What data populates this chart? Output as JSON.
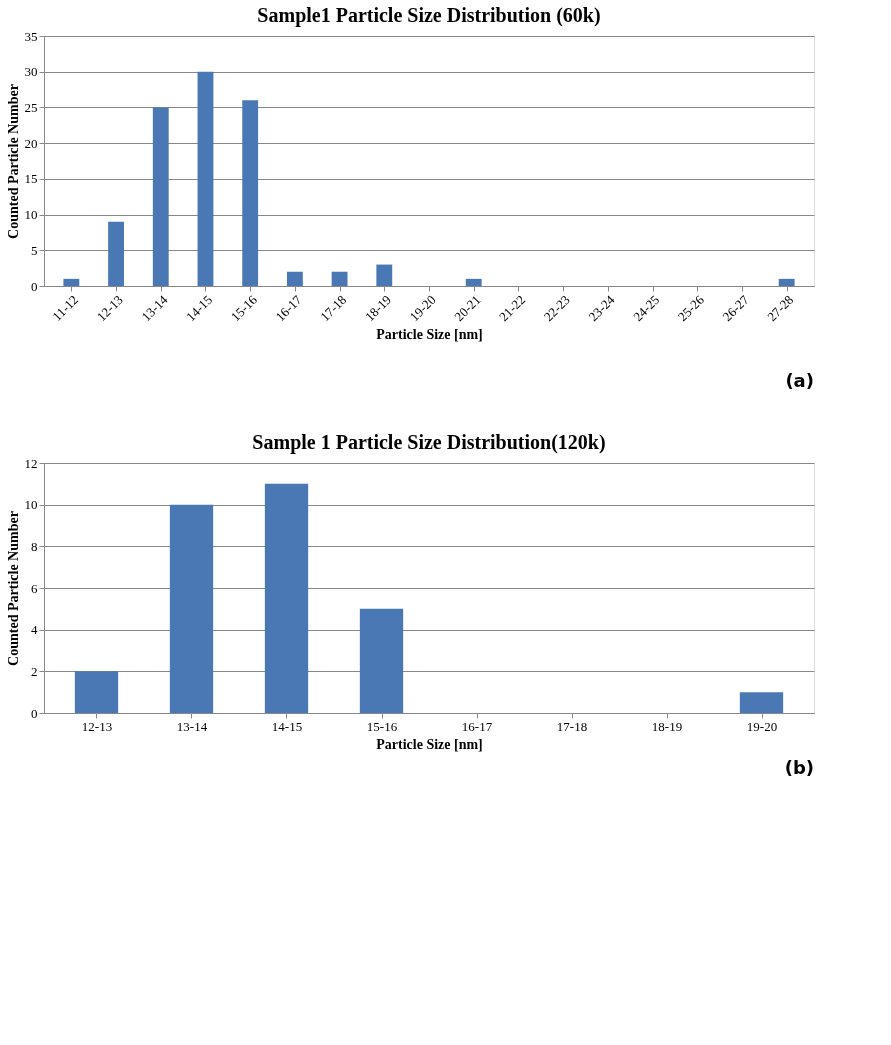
{
  "chart_data": [
    {
      "type": "bar",
      "title": "Sample1 Particle Size Distribution (60k)",
      "xlabel": "Particle Size [nm]",
      "ylabel": "Counted Particle Number",
      "categories": [
        "11-12",
        "12-13",
        "13-14",
        "14-15",
        "15-16",
        "16-17",
        "17-18",
        "18-19",
        "19-20",
        "20-21",
        "21-22",
        "22-23",
        "23-24",
        "24-25",
        "25-26",
        "26-27",
        "27-28"
      ],
      "values": [
        1,
        9,
        25,
        30,
        26,
        2,
        2,
        3,
        0,
        1,
        0,
        0,
        0,
        0,
        0,
        0,
        1
      ],
      "color": "#4a78b4",
      "ylim": [
        0,
        35
      ],
      "yticks": [
        0,
        5,
        10,
        15,
        20,
        25,
        30,
        35
      ],
      "grid": "y",
      "annotations": [
        "(a)"
      ]
    },
    {
      "type": "bar",
      "title": "Sample 1 Particle Size Distribution(120k)",
      "xlabel": "Particle Size [nm]",
      "ylabel": "Counted Particle Number",
      "categories": [
        "12-13",
        "13-14",
        "14-15",
        "15-16",
        "16-17",
        "17-18",
        "18-19",
        "19-20"
      ],
      "values": [
        2,
        10,
        11,
        5,
        0,
        0,
        0,
        1
      ],
      "color": "#4a78b4",
      "ylim": [
        0,
        12
      ],
      "yticks": [
        0,
        2,
        4,
        6,
        8,
        10,
        12
      ],
      "grid": "y",
      "annotations": [
        "(b)"
      ]
    }
  ]
}
